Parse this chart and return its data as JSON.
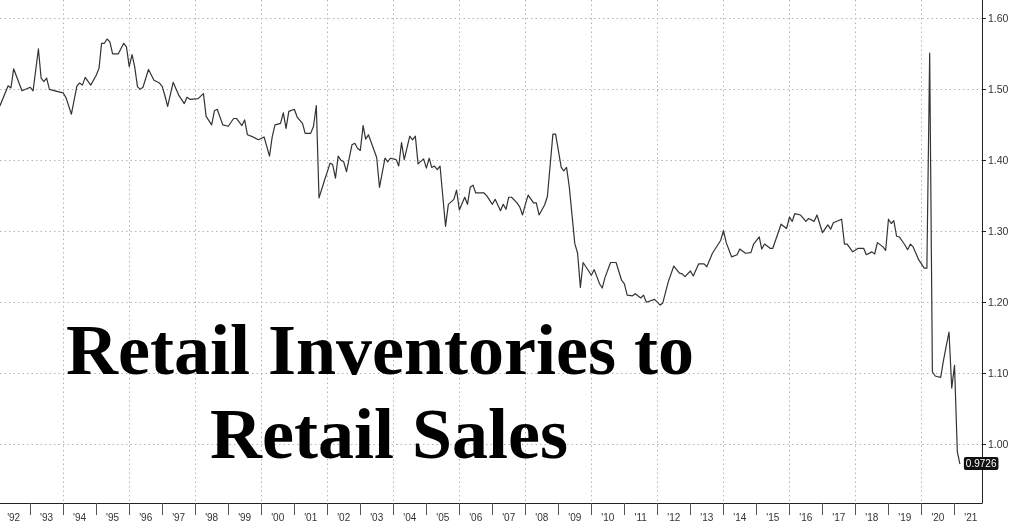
{
  "chart_data": {
    "type": "line",
    "title": "Retail Inventories to Retail Sales",
    "color": "#333333",
    "marker": "none",
    "line_style": "solid",
    "grid": true,
    "x": [
      "1992-02",
      "1992-05",
      "1992-06",
      "1992-07",
      "1992-10",
      "1993-01",
      "1993-02",
      "1993-04",
      "1993-05",
      "1993-06",
      "1993-07",
      "1993-08",
      "1993-10",
      "1994-01",
      "1994-02",
      "1994-04",
      "1994-06",
      "1994-07",
      "1994-08",
      "1994-09",
      "1994-11",
      "1995-01",
      "1995-02",
      "1995-03",
      "1995-04",
      "1995-05",
      "1995-06",
      "1995-07",
      "1995-09",
      "1995-11",
      "1995-12",
      "1996-01",
      "1996-02",
      "1996-03",
      "1996-04",
      "1996-05",
      "1996-06",
      "1996-08",
      "1996-10",
      "1996-12",
      "1997-01",
      "1997-02",
      "1997-03",
      "1997-05",
      "1997-07",
      "1997-09",
      "1997-10",
      "1997-11",
      "1998-02",
      "1998-04",
      "1998-05",
      "1998-07",
      "1998-08",
      "1998-09",
      "1998-11",
      "1999-01",
      "1999-03",
      "1999-04",
      "1999-06",
      "1999-07",
      "1999-08",
      "1999-10",
      "1999-12",
      "2000-02",
      "2000-04",
      "2000-05",
      "2000-06",
      "2000-08",
      "2000-09",
      "2000-10",
      "2000-11",
      "2001-01",
      "2001-02",
      "2001-04",
      "2001-05",
      "2001-07",
      "2001-08",
      "2001-09",
      "2001-10",
      "2001-12",
      "2002-02",
      "2002-03",
      "2002-04",
      "2002-05",
      "2002-06",
      "2002-07",
      "2002-08",
      "2002-10",
      "2002-11",
      "2002-12",
      "2003-01",
      "2003-02",
      "2003-03",
      "2003-04",
      "2003-07",
      "2003-08",
      "2003-10",
      "2003-11",
      "2003-12",
      "2004-02",
      "2004-03",
      "2004-04",
      "2004-05",
      "2004-07",
      "2004-08",
      "2004-09",
      "2004-10",
      "2004-12",
      "2005-01",
      "2005-02",
      "2005-03",
      "2005-04",
      "2005-05",
      "2005-06",
      "2005-08",
      "2005-09",
      "2005-11",
      "2005-12",
      "2006-01",
      "2006-03",
      "2006-04",
      "2006-05",
      "2006-06",
      "2006-07",
      "2006-10",
      "2006-11",
      "2007-01",
      "2007-02",
      "2007-04",
      "2007-05",
      "2007-06",
      "2007-07",
      "2007-08",
      "2007-10",
      "2007-11",
      "2007-12",
      "2008-01",
      "2008-02",
      "2008-04",
      "2008-05",
      "2008-06",
      "2008-08",
      "2008-09",
      "2008-11",
      "2008-12",
      "2009-02",
      "2009-03",
      "2009-04",
      "2009-05",
      "2009-07",
      "2009-08",
      "2009-09",
      "2009-10",
      "2010-01",
      "2010-02",
      "2010-04",
      "2010-05",
      "2010-06",
      "2010-08",
      "2010-10",
      "2010-12",
      "2011-01",
      "2011-02",
      "2011-04",
      "2011-05",
      "2011-07",
      "2011-08",
      "2011-09",
      "2011-12",
      "2012-02",
      "2012-03",
      "2012-05",
      "2012-07",
      "2012-09",
      "2012-10",
      "2012-11",
      "2013-01",
      "2013-02",
      "2013-04",
      "2013-06",
      "2013-07",
      "2013-09",
      "2013-10",
      "2013-12",
      "2014-01",
      "2014-02",
      "2014-04",
      "2014-06",
      "2014-07",
      "2014-09",
      "2014-11",
      "2014-12",
      "2015-02",
      "2015-03",
      "2015-04",
      "2015-06",
      "2015-07",
      "2015-10",
      "2015-12",
      "2016-01",
      "2016-02",
      "2016-03",
      "2016-05",
      "2016-07",
      "2016-08",
      "2016-10",
      "2016-11",
      "2017-01",
      "2017-03",
      "2017-04",
      "2017-05",
      "2017-08",
      "2017-09",
      "2017-10",
      "2017-12",
      "2018-02",
      "2018-04",
      "2018-05",
      "2018-07",
      "2018-08",
      "2018-09",
      "2018-11",
      "2018-12",
      "2019-01",
      "2019-02",
      "2019-03",
      "2019-04",
      "2019-05",
      "2019-07",
      "2019-08",
      "2019-09",
      "2019-10",
      "2019-12",
      "2020-02",
      "2020-03",
      "2020-04",
      "2020-05",
      "2020-06",
      "2020-07",
      "2020-08",
      "2020-09",
      "2020-10",
      "2020-11",
      "2020-12",
      "2021-01",
      "2021-02",
      "2021-03"
    ],
    "values": [
      1.477,
      1.505,
      1.502,
      1.529,
      1.498,
      1.503,
      1.498,
      1.557,
      1.516,
      1.511,
      1.516,
      1.5,
      1.498,
      1.495,
      1.488,
      1.465,
      1.505,
      1.509,
      1.506,
      1.517,
      1.506,
      1.52,
      1.53,
      1.565,
      1.565,
      1.571,
      1.567,
      1.55,
      1.55,
      1.565,
      1.56,
      1.532,
      1.549,
      1.532,
      1.504,
      1.5,
      1.503,
      1.528,
      1.513,
      1.509,
      1.504,
      1.49,
      1.476,
      1.51,
      1.492,
      1.48,
      1.489,
      1.486,
      1.487,
      1.494,
      1.462,
      1.45,
      1.47,
      1.472,
      1.45,
      1.448,
      1.459,
      1.459,
      1.449,
      1.457,
      1.436,
      1.433,
      1.429,
      1.433,
      1.406,
      1.433,
      1.45,
      1.452,
      1.467,
      1.445,
      1.469,
      1.472,
      1.461,
      1.452,
      1.438,
      1.438,
      1.448,
      1.477,
      1.347,
      1.372,
      1.396,
      1.394,
      1.375,
      1.406,
      1.4,
      1.398,
      1.384,
      1.422,
      1.424,
      1.417,
      1.414,
      1.449,
      1.43,
      1.436,
      1.404,
      1.362,
      1.403,
      1.398,
      1.403,
      1.401,
      1.392,
      1.425,
      1.401,
      1.434,
      1.429,
      1.434,
      1.395,
      1.402,
      1.389,
      1.403,
      1.39,
      1.392,
      1.387,
      1.392,
      1.307,
      1.338,
      1.345,
      1.358,
      1.33,
      1.348,
      1.338,
      1.362,
      1.365,
      1.354,
      1.354,
      1.35,
      1.338,
      1.345,
      1.329,
      1.338,
      1.331,
      1.348,
      1.348,
      1.34,
      1.334,
      1.323,
      1.338,
      1.351,
      1.34,
      1.34,
      1.323,
      1.337,
      1.349,
      1.437,
      1.437,
      1.39,
      1.385,
      1.39,
      1.363,
      1.283,
      1.269,
      1.221,
      1.256,
      1.238,
      1.246,
      1.226,
      1.22,
      1.235,
      1.256,
      1.256,
      1.231,
      1.226,
      1.21,
      1.209,
      1.212,
      1.206,
      1.21,
      1.2,
      1.204,
      1.196,
      1.199,
      1.229,
      1.251,
      1.241,
      1.24,
      1.236,
      1.244,
      1.237,
      1.254,
      1.254,
      1.25,
      1.269,
      1.275,
      1.287,
      1.301,
      1.284,
      1.264,
      1.267,
      1.275,
      1.269,
      1.27,
      1.282,
      1.292,
      1.275,
      1.282,
      1.276,
      1.276,
      1.31,
      1.304,
      1.32,
      1.314,
      1.325,
      1.323,
      1.314,
      1.318,
      1.314,
      1.323,
      1.298,
      1.309,
      1.303,
      1.312,
      1.317,
      1.282,
      1.282,
      1.271,
      1.276,
      1.276,
      1.267,
      1.271,
      1.268,
      1.284,
      1.278,
      1.273,
      1.317,
      1.311,
      1.315,
      1.293,
      1.292,
      1.281,
      1.274,
      1.282,
      1.278,
      1.26,
      1.248,
      1.248,
      1.551,
      1.102,
      1.096,
      1.095,
      1.094,
      1.118,
      1.138,
      1.158,
      1.079,
      1.111,
      0.989,
      0.9726
    ],
    "value_labels": [
      null,
      null,
      null,
      null,
      null,
      null,
      null,
      null,
      null,
      null,
      null,
      null,
      null,
      null,
      null,
      null,
      null,
      null,
      null,
      null,
      null,
      null,
      null,
      null,
      null,
      null,
      null,
      null,
      null,
      null,
      null,
      null,
      null,
      null,
      null,
      null,
      null,
      null,
      null,
      null,
      null,
      null,
      null,
      null,
      null,
      null,
      null,
      null,
      null,
      null,
      null,
      null,
      null,
      null,
      null,
      null,
      null,
      null,
      null,
      null,
      null,
      null,
      null,
      null,
      null,
      null,
      null,
      null,
      null,
      null,
      null,
      null,
      null,
      null,
      null,
      null,
      null,
      null,
      null,
      null,
      null,
      null,
      null,
      null,
      null,
      null,
      null,
      null,
      null,
      null,
      null,
      null,
      null,
      null,
      null,
      null,
      null,
      null,
      null,
      null,
      null,
      null,
      null,
      null,
      null,
      null,
      null,
      null,
      null,
      null,
      null,
      null,
      null,
      null,
      null,
      null,
      null,
      null,
      null,
      null,
      null,
      null,
      null,
      null,
      null,
      null,
      null,
      null,
      null,
      null,
      null,
      null,
      null,
      null,
      null,
      null,
      null,
      null,
      null,
      null,
      null,
      null,
      null,
      null,
      null,
      null,
      null,
      null,
      null,
      null,
      null,
      null,
      null,
      null,
      null,
      null,
      null,
      null,
      null,
      null,
      null,
      null,
      null,
      null,
      null,
      null,
      null,
      null,
      null,
      null,
      null,
      null,
      null,
      null,
      null,
      null,
      null,
      null,
      null,
      null,
      null,
      null,
      null,
      null,
      null,
      null,
      null,
      null,
      null,
      null,
      null,
      null,
      null,
      null,
      null,
      null,
      null,
      null,
      null,
      null,
      null,
      null,
      null,
      null,
      null,
      null,
      null,
      null,
      null,
      null,
      null,
      null,
      null,
      null,
      null,
      null,
      null,
      null,
      null,
      null,
      null,
      null,
      null,
      null,
      null,
      null,
      null,
      null,
      null,
      null,
      null,
      null,
      null,
      null,
      null,
      null,
      null,
      null,
      null,
      null,
      null,
      null,
      null,
      null,
      null,
      null,
      "0.9726"
    ],
    "xlim": [
      "1992-02",
      "2021-11"
    ],
    "ylim": [
      0.917,
      1.626
    ],
    "xticks": [
      {
        "value": "1992-07",
        "label": "'92"
      },
      {
        "value": "1993-07",
        "label": "'93"
      },
      {
        "value": "1994-07",
        "label": "'94"
      },
      {
        "value": "1995-07",
        "label": "'95"
      },
      {
        "value": "1996-07",
        "label": "'96"
      },
      {
        "value": "1997-07",
        "label": "'97"
      },
      {
        "value": "1998-07",
        "label": "'98"
      },
      {
        "value": "1999-07",
        "label": "'99"
      },
      {
        "value": "2000-07",
        "label": "'00"
      },
      {
        "value": "2001-07",
        "label": "'01"
      },
      {
        "value": "2002-07",
        "label": "'02"
      },
      {
        "value": "2003-07",
        "label": "'03"
      },
      {
        "value": "2004-07",
        "label": "'04"
      },
      {
        "value": "2005-07",
        "label": "'05"
      },
      {
        "value": "2006-07",
        "label": "'06"
      },
      {
        "value": "2007-07",
        "label": "'07"
      },
      {
        "value": "2008-07",
        "label": "'08"
      },
      {
        "value": "2009-07",
        "label": "'09"
      },
      {
        "value": "2010-07",
        "label": "'10"
      },
      {
        "value": "2011-07",
        "label": "'11"
      },
      {
        "value": "2012-07",
        "label": "'12"
      },
      {
        "value": "2013-07",
        "label": "'13"
      },
      {
        "value": "2014-07",
        "label": "'14"
      },
      {
        "value": "2015-07",
        "label": "'15"
      },
      {
        "value": "2016-07",
        "label": "'16"
      },
      {
        "value": "2017-07",
        "label": "'17"
      },
      {
        "value": "2018-07",
        "label": "'18"
      },
      {
        "value": "2019-07",
        "label": "'19"
      },
      {
        "value": "2020-07",
        "label": "'20"
      },
      {
        "value": "2021-07",
        "label": "'21"
      },
      {
        "value": "1993",
        "label": null
      },
      {
        "value": "1994",
        "label": null
      },
      {
        "value": "1995",
        "label": null
      },
      {
        "value": "1996",
        "label": null
      },
      {
        "value": "1997",
        "label": null
      },
      {
        "value": "1998",
        "label": null
      },
      {
        "value": "1999",
        "label": null
      },
      {
        "value": "2000",
        "label": null
      },
      {
        "value": "2001",
        "label": null
      },
      {
        "value": "2002",
        "label": null
      },
      {
        "value": "2003",
        "label": null
      },
      {
        "value": "2004",
        "label": null
      },
      {
        "value": "2005",
        "label": null
      },
      {
        "value": "2006",
        "label": null
      },
      {
        "value": "2007",
        "label": null
      },
      {
        "value": "2008",
        "label": null
      },
      {
        "value": "2009",
        "label": null
      },
      {
        "value": "2010",
        "label": null
      },
      {
        "value": "2011",
        "label": null
      },
      {
        "value": "2012",
        "label": null
      },
      {
        "value": "2013",
        "label": null
      },
      {
        "value": "2014",
        "label": null
      },
      {
        "value": "2015",
        "label": null
      },
      {
        "value": "2016",
        "label": null
      },
      {
        "value": "2017",
        "label": null
      },
      {
        "value": "2018",
        "label": null
      },
      {
        "value": "2019",
        "label": null
      },
      {
        "value": "2020",
        "label": null
      },
      {
        "value": "2021",
        "label": null
      }
    ],
    "yticks": [
      {
        "value": 1.0,
        "label": "1.00"
      },
      {
        "value": 1.1,
        "label": "1.10"
      },
      {
        "value": 1.2,
        "label": "1.20"
      },
      {
        "value": 1.3,
        "label": "1.30"
      },
      {
        "value": 1.4,
        "label": "1.40"
      },
      {
        "value": 1.5,
        "label": "1.50"
      },
      {
        "value": 1.6,
        "label": "1.60"
      }
    ]
  }
}
